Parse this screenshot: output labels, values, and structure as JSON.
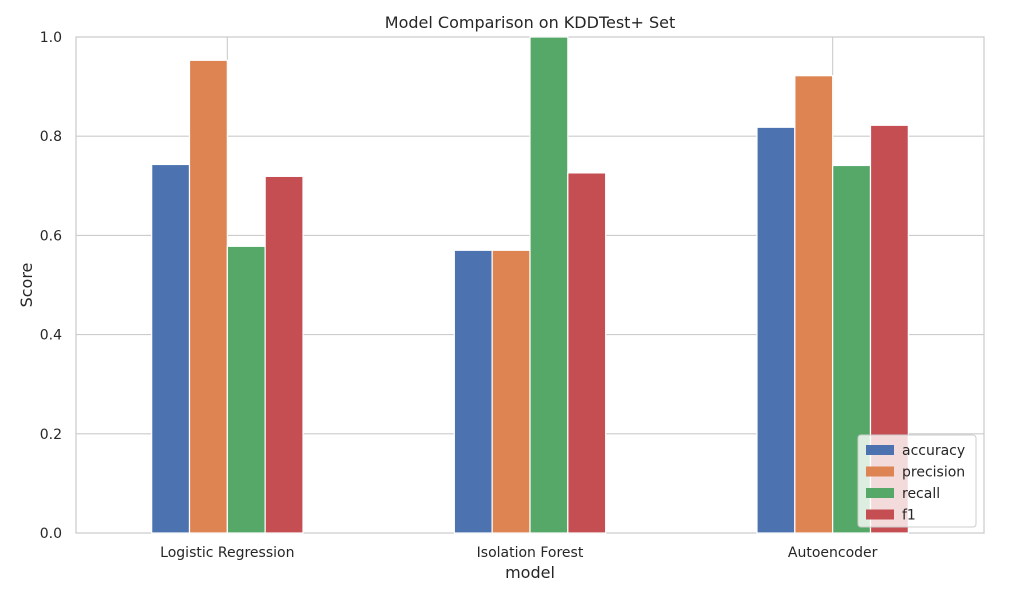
{
  "chart_data": {
    "type": "bar",
    "title": "Model Comparison on KDDTest+ Set",
    "xlabel": "model",
    "ylabel": "Score",
    "ylim": [
      0,
      1.0
    ],
    "yticks": [
      "0.0",
      "0.2",
      "0.4",
      "0.6",
      "0.8",
      "1.0"
    ],
    "categories": [
      "Logistic Regression",
      "Isolation Forest",
      "Autoencoder"
    ],
    "series": [
      {
        "name": "accuracy",
        "color": "#4C72B0",
        "values": [
          0.743,
          0.57,
          0.818
        ]
      },
      {
        "name": "precision",
        "color": "#DD8452",
        "values": [
          0.953,
          0.57,
          0.922
        ]
      },
      {
        "name": "recall",
        "color": "#55A868",
        "values": [
          0.578,
          1.0,
          0.741
        ]
      },
      {
        "name": "f1",
        "color": "#C44E52",
        "values": [
          0.719,
          0.726,
          0.822
        ]
      }
    ],
    "grid": true,
    "legend_position": "lower-right"
  }
}
